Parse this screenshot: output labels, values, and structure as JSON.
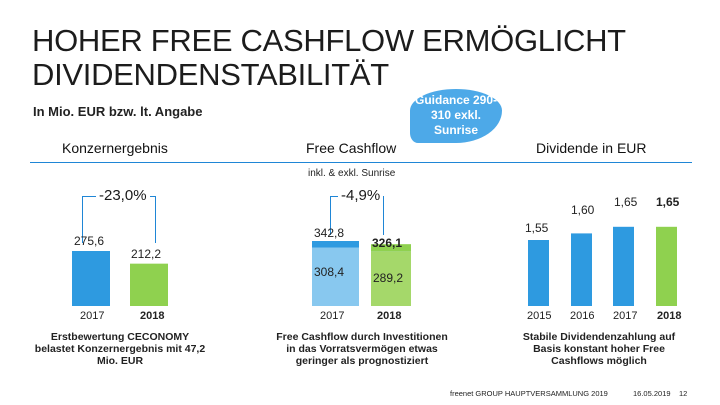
{
  "slide": {
    "title": "HOHER FREE CASHFLOW ERMÖGLICHT DIVIDENDENSTABILITÄT",
    "subtitle": "In Mio. EUR bzw. lt. Angabe",
    "guidance": "Guidance 290-310 exkl. Sunrise",
    "footer": "freenet GROUP HAUPTVERSAMMLUNG 2019",
    "date": "16.05.2019",
    "page": "12"
  },
  "colors": {
    "blue": "#2e9ae0",
    "light_blue": "#88c8ef",
    "green": "#8fd14f",
    "accent": "#1f86d6"
  },
  "chart_data": [
    {
      "type": "bar",
      "title": "Konzernergebnis",
      "categories": [
        "2017",
        "2018"
      ],
      "values": [
        275.6,
        212.2
      ],
      "labels": [
        "275,6",
        "212,2"
      ],
      "change_label": "-23,0%",
      "note": "Erstbewertung CECONOMY belastet Konzernergebnis mit 47,2 Mio. EUR"
    },
    {
      "type": "bar",
      "title": "Free Cashflow",
      "subtitle": "inkl. & exkl. Sunrise",
      "categories": [
        "2017",
        "2018"
      ],
      "series": [
        {
          "name": "exkl. Sunrise",
          "values": [
            308.4,
            289.2
          ],
          "labels": [
            "308,4",
            "289,2"
          ]
        },
        {
          "name": "inkl. Sunrise",
          "values": [
            342.8,
            326.1
          ],
          "labels": [
            "342,8",
            "326,1"
          ]
        }
      ],
      "change_label": "-4,9%",
      "note": "Free Cashflow durch Investitionen in das Vorratsvermögen etwas geringer als prognostiziert"
    },
    {
      "type": "bar",
      "title": "Dividende in EUR",
      "categories": [
        "2015",
        "2016",
        "2017",
        "2018"
      ],
      "values": [
        1.55,
        1.6,
        1.65,
        1.65
      ],
      "labels": [
        "1,55",
        "1,60",
        "1,65",
        "1,65"
      ],
      "note": "Stabile Dividendenzahlung auf Basis konstant hoher Free Cashflows möglich"
    }
  ]
}
